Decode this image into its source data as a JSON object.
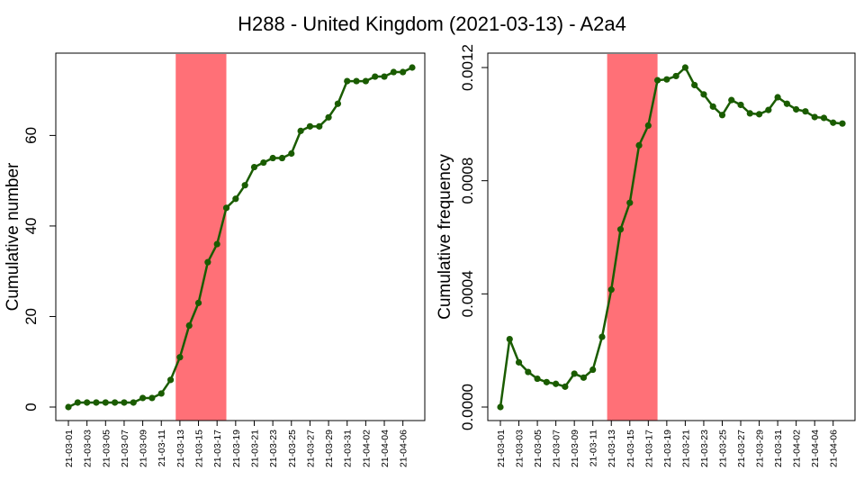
{
  "title": "H288 - United Kingdom (2021-03-13) - A2a4",
  "colors": {
    "line": "#1a5c00",
    "highlight": "#ff7077",
    "axis": "#000000"
  },
  "chart_data": [
    {
      "type": "line",
      "title": "",
      "xlabel": "",
      "ylabel": "Cumulative number",
      "categories": [
        "21-03-01",
        "21-03-02",
        "21-03-03",
        "21-03-04",
        "21-03-05",
        "21-03-06",
        "21-03-07",
        "21-03-08",
        "21-03-09",
        "21-03-10",
        "21-03-11",
        "21-03-12",
        "21-03-13",
        "21-03-14",
        "21-03-15",
        "21-03-16",
        "21-03-17",
        "21-03-18",
        "21-03-19",
        "21-03-20",
        "21-03-21",
        "21-03-22",
        "21-03-23",
        "21-03-24",
        "21-03-25",
        "21-03-26",
        "21-03-27",
        "21-03-28",
        "21-03-29",
        "21-03-30",
        "21-03-31",
        "21-04-01",
        "21-04-02",
        "21-04-03",
        "21-04-04",
        "21-04-05",
        "21-04-06",
        "21-04-07"
      ],
      "x_tick_labels": [
        "21-03-01",
        "21-03-03",
        "21-03-05",
        "21-03-07",
        "21-03-09",
        "21-03-11",
        "21-03-13",
        "21-03-15",
        "21-03-17",
        "21-03-19",
        "21-03-21",
        "21-03-23",
        "21-03-25",
        "21-03-27",
        "21-03-29",
        "21-03-31",
        "21-04-02",
        "21-04-04",
        "21-04-06"
      ],
      "values": [
        0,
        1,
        1,
        1,
        1,
        1,
        1,
        1,
        2,
        2,
        3,
        6,
        11,
        18,
        23,
        32,
        36,
        44,
        46,
        49,
        53,
        54,
        55,
        55,
        56,
        61,
        62,
        62,
        64,
        67,
        72,
        72,
        72,
        73,
        73,
        74,
        74,
        75
      ],
      "ylim": [
        0,
        75
      ],
      "y_ticks": [
        0,
        20,
        40,
        60
      ],
      "y_tick_labels": [
        "0",
        "20",
        "40",
        "60"
      ],
      "highlight_range": [
        "21-03-12",
        "21-03-17"
      ],
      "grid": false
    },
    {
      "type": "line",
      "title": "",
      "xlabel": "",
      "ylabel": "Cumulative frequency",
      "categories": [
        "21-03-01",
        "21-03-02",
        "21-03-03",
        "21-03-04",
        "21-03-05",
        "21-03-06",
        "21-03-07",
        "21-03-08",
        "21-03-09",
        "21-03-10",
        "21-03-11",
        "21-03-12",
        "21-03-13",
        "21-03-14",
        "21-03-15",
        "21-03-16",
        "21-03-17",
        "21-03-18",
        "21-03-19",
        "21-03-20",
        "21-03-21",
        "21-03-22",
        "21-03-23",
        "21-03-24",
        "21-03-25",
        "21-03-26",
        "21-03-27",
        "21-03-28",
        "21-03-29",
        "21-03-30",
        "21-03-31",
        "21-04-01",
        "21-04-02",
        "21-04-03",
        "21-04-04",
        "21-04-05",
        "21-04-06",
        "21-04-07"
      ],
      "x_tick_labels": [
        "21-03-01",
        "21-03-03",
        "21-03-05",
        "21-03-07",
        "21-03-09",
        "21-03-11",
        "21-03-13",
        "21-03-15",
        "21-03-17",
        "21-03-19",
        "21-03-21",
        "21-03-23",
        "21-03-25",
        "21-03-27",
        "21-03-29",
        "21-03-31",
        "21-04-02",
        "21-04-04",
        "21-04-06"
      ],
      "values": [
        0,
        0.00024,
        0.000158,
        0.000124,
        0.0001,
        8.8e-05,
        8.2e-05,
        7.2e-05,
        0.000118,
        0.000104,
        0.000132,
        0.000248,
        0.000415,
        0.000628,
        0.000722,
        0.000925,
        0.000995,
        0.001155,
        0.001158,
        0.00117,
        0.0012,
        0.001138,
        0.001105,
        0.001062,
        0.001032,
        0.001085,
        0.001068,
        0.001038,
        0.001035,
        0.00105,
        0.001095,
        0.001072,
        0.001052,
        0.001045,
        0.001025,
        0.001022,
        0.001005,
        0.001002
      ],
      "ylim": [
        0,
        0.0012
      ],
      "y_ticks": [
        0,
        0.0004,
        0.0008,
        0.0012
      ],
      "y_tick_labels": [
        "0.0000",
        "0.0004",
        "0.0008",
        "0.0012"
      ],
      "highlight_range": [
        "21-03-12",
        "21-03-17"
      ],
      "grid": false
    }
  ]
}
